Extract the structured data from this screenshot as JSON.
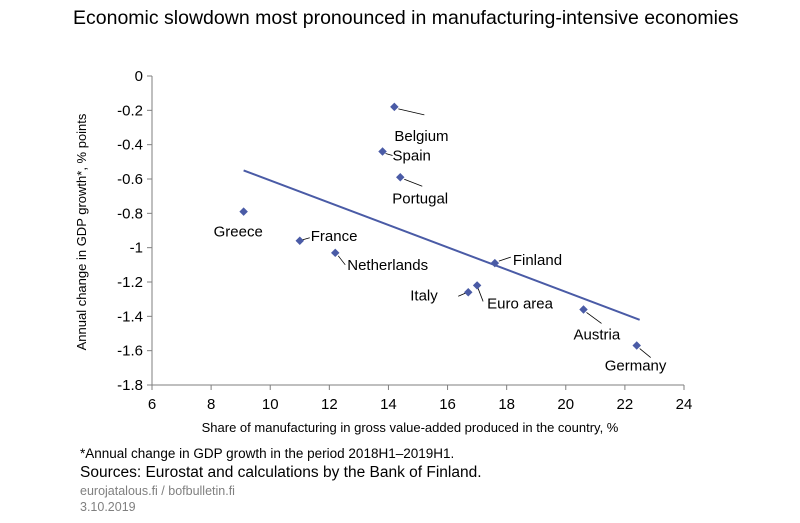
{
  "title": "Economic slowdown most pronounced in manufacturing-intensive economies",
  "footnote": "*Annual change in GDP growth in the period 2018H1–2019H1.",
  "sources": "Sources: Eurostat and calculations by the Bank of Finland.",
  "site": "eurojatalous.fi / bofbulletin.fi",
  "date": "3.10.2019",
  "chart_data": {
    "type": "scatter",
    "xlabel": "Share of manufacturing in gross value-added produced in the country, %",
    "ylabel": "Annual change in GDP growth*, % points",
    "xlim": [
      6,
      24
    ],
    "ylim": [
      -1.8,
      0
    ],
    "x_ticks": [
      6,
      8,
      10,
      12,
      14,
      16,
      18,
      20,
      22,
      24
    ],
    "y_ticks": [
      0,
      -0.2,
      -0.4,
      -0.6,
      -0.8,
      -1,
      -1.2,
      -1.4,
      -1.6,
      -1.8
    ],
    "y_tick_labels": [
      "0",
      "-0.2",
      "-0.4",
      "-0.6",
      "-0.8",
      "-1",
      "-1.2",
      "-1.4",
      "-1.6",
      "-1.8"
    ],
    "grid": false,
    "marker_color": "#4a5ba6",
    "trendline_color": "#4a5ba6",
    "points": [
      {
        "label": "Belgium",
        "x": 14.2,
        "y": -0.18
      },
      {
        "label": "Spain",
        "x": 13.8,
        "y": -0.44
      },
      {
        "label": "Portugal",
        "x": 14.4,
        "y": -0.59
      },
      {
        "label": "Greece",
        "x": 9.1,
        "y": -0.79
      },
      {
        "label": "France",
        "x": 11.0,
        "y": -0.96
      },
      {
        "label": "Netherlands",
        "x": 12.2,
        "y": -1.03
      },
      {
        "label": "Finland",
        "x": 17.6,
        "y": -1.09
      },
      {
        "label": "Italy",
        "x": 16.7,
        "y": -1.26
      },
      {
        "label": "Euro area",
        "x": 17.0,
        "y": -1.22
      },
      {
        "label": "Austria",
        "x": 20.6,
        "y": -1.36
      },
      {
        "label": "Germany",
        "x": 22.4,
        "y": -1.57
      }
    ],
    "trendline": {
      "x": [
        9.1,
        22.5
      ],
      "y": [
        -0.55,
        -1.42
      ]
    }
  }
}
